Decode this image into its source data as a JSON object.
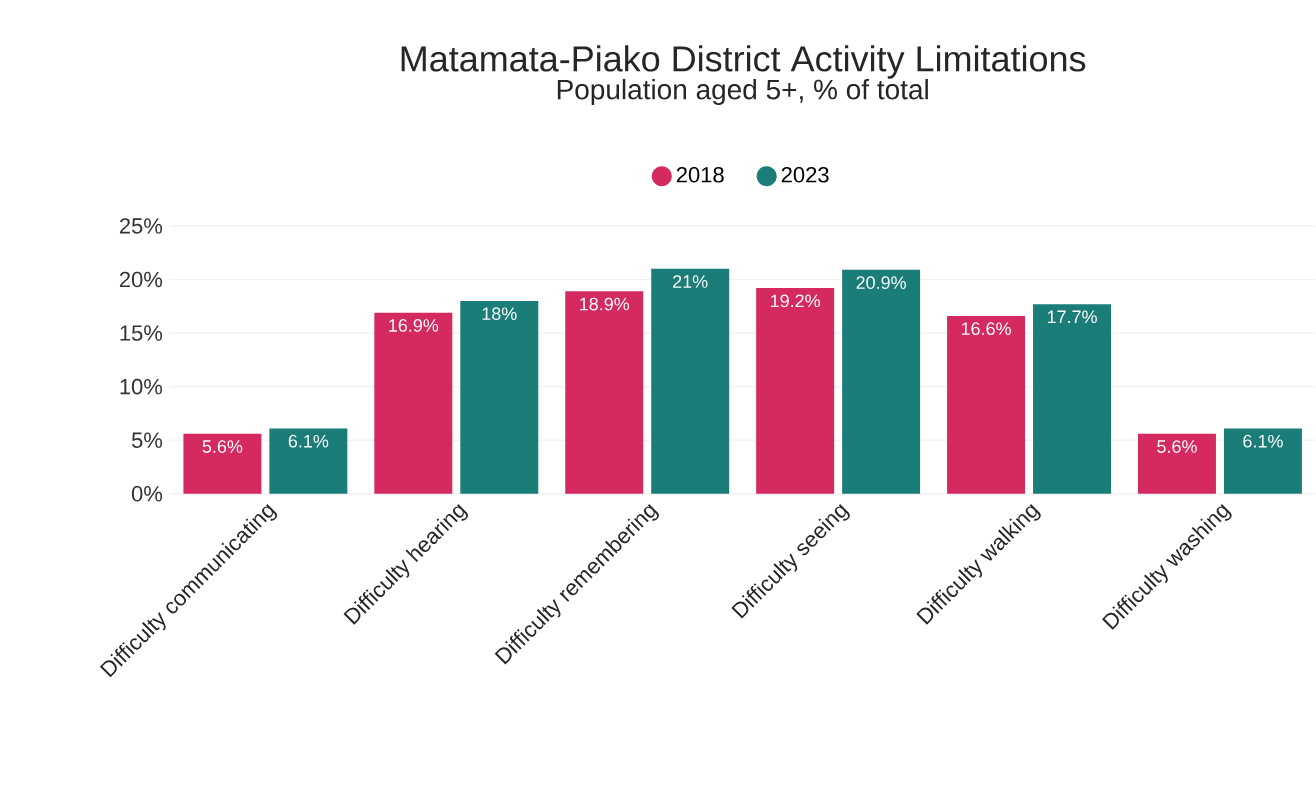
{
  "chart_data": {
    "type": "bar",
    "title": "Matamata-Piako District Activity Limitations",
    "subtitle": "Population aged 5+, % of total",
    "categories": [
      "Difficulty communicating",
      "Difficulty hearing",
      "Difficulty remembering",
      "Difficulty seeing",
      "Difficulty walking",
      "Difficulty washing"
    ],
    "series": [
      {
        "name": "2018",
        "color": "#d42a60",
        "values": [
          5.6,
          16.9,
          18.9,
          19.2,
          16.6,
          5.6
        ],
        "value_labels": [
          "5.6%",
          "16.9%",
          "18.9%",
          "19.2%",
          "16.6%",
          "5.6%"
        ]
      },
      {
        "name": "2023",
        "color": "#1b7d78",
        "values": [
          6.1,
          18,
          21,
          20.9,
          17.7,
          6.1
        ],
        "value_labels": [
          "6.1%",
          "18%",
          "21%",
          "20.9%",
          "17.7%",
          "6.1%"
        ]
      }
    ],
    "ylim": [
      0,
      25
    ],
    "yticks": [
      {
        "value": 0,
        "label": "0%"
      },
      {
        "value": 5,
        "label": "5%"
      },
      {
        "value": 10,
        "label": "10%"
      },
      {
        "value": 15,
        "label": "15%"
      },
      {
        "value": 20,
        "label": "20%"
      },
      {
        "value": 25,
        "label": "25%"
      }
    ],
    "grid": "y",
    "legend": "top"
  }
}
